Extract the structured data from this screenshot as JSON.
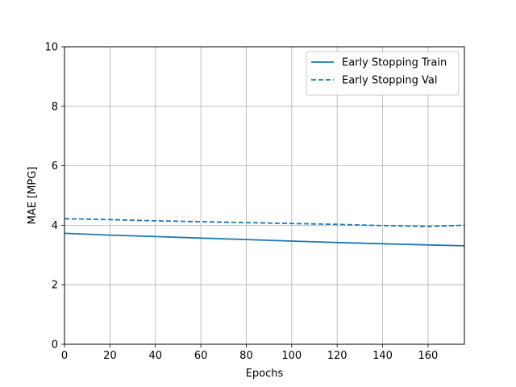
{
  "chart_data": {
    "type": "line",
    "xlabel": "Epochs",
    "ylabel": "MAE [MPG]",
    "xlim": [
      0,
      176
    ],
    "ylim": [
      0,
      10
    ],
    "xticks": [
      0,
      20,
      40,
      60,
      80,
      100,
      120,
      140,
      160
    ],
    "yticks": [
      0,
      2,
      4,
      6,
      8,
      10
    ],
    "grid": true,
    "legend_position": "top-right",
    "series": [
      {
        "name": "Early Stopping Train",
        "style": "solid",
        "color": "#1f77b4",
        "x": [
          0,
          20,
          40,
          60,
          80,
          100,
          120,
          140,
          160,
          176
        ],
        "y": [
          3.73,
          3.67,
          3.62,
          3.57,
          3.52,
          3.47,
          3.42,
          3.38,
          3.34,
          3.31
        ]
      },
      {
        "name": "Early Stopping Val",
        "style": "dashed",
        "color": "#1f77b4",
        "x": [
          0,
          20,
          40,
          60,
          80,
          100,
          120,
          140,
          160,
          176
        ],
        "y": [
          4.22,
          4.19,
          4.15,
          4.12,
          4.09,
          4.06,
          4.03,
          3.99,
          3.96,
          4.0
        ]
      }
    ]
  }
}
